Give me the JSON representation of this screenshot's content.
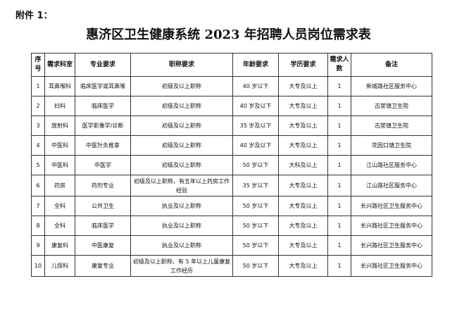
{
  "attachment": "附件 1：",
  "title": "惠济区卫生健康系统 2023 年招聘人员岗位需求表",
  "headers": [
    "序号",
    "需求科室",
    "专业要求",
    "职称要求",
    "年龄要求",
    "学历要求",
    "需求人数",
    "备注"
  ],
  "rows": [
    [
      "1",
      "耳鼻喉科",
      "临床医学或耳鼻喉",
      "初级及以上职称",
      "40 岁以下",
      "大专及以上",
      "1",
      "新城路社区服务中心"
    ],
    [
      "2",
      "妇科",
      "临床医学",
      "初级及以上职称",
      "40 岁及以下",
      "大专及以上",
      "1",
      "古荥镇卫生院"
    ],
    [
      "3",
      "放射科",
      "医学影像学/诊断",
      "初级及以上职称",
      "35 岁及以下",
      "大专及以上",
      "1",
      "古荥镇卫生院"
    ],
    [
      "4",
      "中医科",
      "中医针灸推拿",
      "初级及以上职称",
      "40 岁及以下",
      "大专及以上",
      "1",
      "花园口镇卫生院"
    ],
    [
      "5",
      "中医科",
      "中医学",
      "初级及以上职称",
      "50 岁以下",
      "大科及以上",
      "1",
      "江山路社区服务中心"
    ],
    [
      "6",
      "药房",
      "药剂专业",
      "初级及以上职称、有五年以上药房工作经验",
      "35 岁以下",
      "大专及以上",
      "1",
      "江山路社区服务中心"
    ],
    [
      "7",
      "全科",
      "公共卫生",
      "执业及以上职称",
      "50 岁以下",
      "大专及以上",
      "1",
      "长兴路社区卫生服务中心"
    ],
    [
      "8",
      "全科",
      "临床医学",
      "执业及以上职称",
      "50 岁以下",
      "大专及以上",
      "1",
      "长兴路社区卫生服务中心"
    ],
    [
      "9",
      "康复科",
      "中医康复",
      "执业及以上职称",
      "50 岁以下",
      "大专及以上",
      "1",
      "长兴路社区卫生服务中心"
    ],
    [
      "10",
      "儿保科",
      "康复专业",
      "初级及以上职称、有 5 年以上儿童康复工作经历",
      "50 岁以下",
      "大专及以上",
      "1",
      "长兴路社区卫生服务中心"
    ]
  ]
}
